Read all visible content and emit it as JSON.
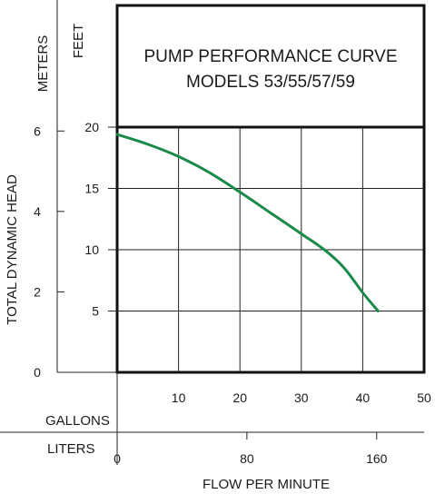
{
  "chart_data": {
    "type": "line",
    "title": "PUMP PERFORMANCE CURVE",
    "subtitle": "MODELS 53/55/57/59",
    "xlabel": "FLOW PER MINUTE",
    "ylabel": "TOTAL DYNAMIC HEAD",
    "x_unit_primary": "GALLONS",
    "x_unit_secondary": "LITERS",
    "y_unit_primary": "FEET",
    "y_unit_secondary": "METERS",
    "xlim": [
      0,
      50
    ],
    "ylim": [
      0,
      20
    ],
    "grid": true,
    "x_ticks_gallons": [
      "10",
      "20",
      "30",
      "40",
      "50"
    ],
    "x_ticks_liters": [
      "0",
      "80",
      "160"
    ],
    "y_ticks_feet": [
      "20",
      "15",
      "10",
      "5"
    ],
    "y_ticks_meters": [
      "0",
      "2",
      "4",
      "6"
    ],
    "line_color": "#1a8a4a",
    "series": [
      {
        "x": [
          0,
          5,
          10,
          15,
          20,
          25,
          30,
          34,
          37,
          40,
          42.5
        ],
        "y": [
          19.4,
          18.6,
          17.6,
          16.3,
          14.7,
          13.0,
          11.3,
          9.9,
          8.5,
          6.5,
          5.0
        ]
      }
    ]
  }
}
